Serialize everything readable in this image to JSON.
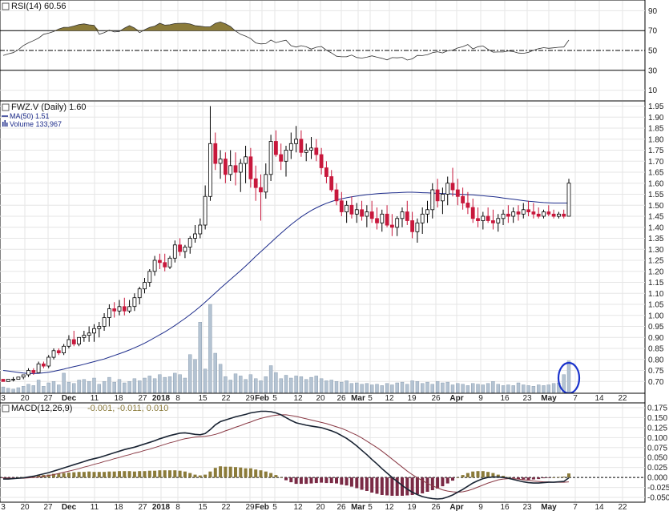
{
  "panels": {
    "rsi": {
      "title": "RSI(14) 60.56",
      "yticks": [
        10,
        30,
        50,
        70,
        90
      ],
      "ylim": [
        0,
        100
      ],
      "upper_line": 70,
      "lower_line": 30,
      "mid_line": 50,
      "fill_color": "#8b7b3a"
    },
    "price": {
      "title": "FWZ.V (Daily) 1.60",
      "ma_label": "MA(50) 1.51",
      "volume_label": "Volume 133,967",
      "ylim": [
        0.65,
        1.97
      ],
      "yticks": [
        "0.70",
        "0.75",
        "0.80",
        "0.85",
        "0.90",
        "0.95",
        "1.00",
        "1.05",
        "1.10",
        "1.15",
        "1.20",
        "1.25",
        "1.30",
        "1.35",
        "1.40",
        "1.45",
        "1.50",
        "1.55",
        "1.60",
        "1.65",
        "1.70",
        "1.75",
        "1.80",
        "1.85",
        "1.90",
        "1.95"
      ],
      "up_color": "#ffffff",
      "down_color": "#c8183c",
      "ma_color": "#1c2b8a",
      "volume_color": "#b4c3d2",
      "highlight_circle_color": "#1a33cc"
    },
    "macd": {
      "title": "MACD(12,26,9)",
      "values_label": "-0.001, -0.011, 0.010",
      "ylim": [
        -0.06,
        0.185
      ],
      "yticks": [
        "-0.050",
        "-0.025",
        "0.000",
        "0.025",
        "0.050",
        "0.075",
        "0.100",
        "0.125",
        "0.150",
        "0.175"
      ],
      "macd_color": "#1a2433",
      "signal_color": "#8a3a45",
      "hist_pos_color": "#8b7b3a",
      "hist_neg_color": "#7a2a45"
    }
  },
  "xaxis_labels": [
    "3",
    "20",
    "27",
    "Dec",
    "11",
    "18",
    "27",
    "2018",
    "8",
    "15",
    "22",
    "29",
    "Feb",
    "5",
    "12",
    "20",
    "26",
    "Mar",
    "5",
    "12",
    "19",
    "26",
    "Apr",
    "9",
    "16",
    "23",
    "May",
    "7",
    "14",
    "22"
  ],
  "chart_data": {
    "type": "candlestick",
    "n_bars": 113,
    "rsi": [
      44.9,
      46.6,
      47.8,
      50.7,
      55.0,
      57.7,
      59.9,
      62.4,
      66.3,
      67.4,
      69.0,
      71.6,
      73.3,
      73.4,
      74.6,
      76.1,
      76.8,
      75.8,
      75.3,
      66.3,
      68.0,
      70.5,
      68.6,
      69.1,
      72.5,
      75.0,
      72.7,
      67.9,
      70.9,
      73.3,
      74.5,
      77.4,
      75.5,
      75.9,
      77.1,
      77.3,
      77.4,
      76.7,
      75.0,
      74.4,
      73.8,
      73.8,
      77.3,
      78.7,
      76.8,
      74.1,
      69.5,
      66.3,
      64.4,
      61.9,
      57.6,
      56.6,
      56.9,
      60.5,
      57.9,
      59.3,
      60.3,
      54.8,
      53.4,
      54.8,
      53.7,
      51.4,
      53.2,
      54.0,
      50.3,
      47.5,
      44.2,
      43.6,
      43.7,
      45.3,
      42.9,
      42.3,
      43.2,
      44.6,
      43.2,
      42.1,
      40.5,
      42.8,
      42.6,
      43.1,
      40.3,
      41.5,
      45.0,
      44.8,
      45.7,
      47.8,
      48.7,
      47.5,
      49.7,
      50.3,
      52.5,
      53.9,
      56.0,
      51.5,
      53.8,
      54.5,
      51.1,
      48.3,
      48.5,
      48.5,
      49.5,
      48.9,
      47.4,
      47.1,
      48.1,
      50.2,
      51.8,
      52.8,
      52.2,
      52.7,
      53.2,
      53.5,
      60.5
    ],
    "ohlc": [
      [
        0.71,
        0.71,
        0.7,
        0.7
      ],
      [
        0.7,
        0.71,
        0.7,
        0.71
      ],
      [
        0.71,
        0.72,
        0.7,
        0.71
      ],
      [
        0.71,
        0.72,
        0.71,
        0.72
      ],
      [
        0.72,
        0.73,
        0.71,
        0.73
      ],
      [
        0.73,
        0.76,
        0.72,
        0.75
      ],
      [
        0.75,
        0.76,
        0.73,
        0.74
      ],
      [
        0.74,
        0.79,
        0.74,
        0.78
      ],
      [
        0.78,
        0.79,
        0.76,
        0.77
      ],
      [
        0.77,
        0.82,
        0.76,
        0.81
      ],
      [
        0.81,
        0.85,
        0.8,
        0.84
      ],
      [
        0.84,
        0.85,
        0.82,
        0.83
      ],
      [
        0.83,
        0.87,
        0.82,
        0.86
      ],
      [
        0.86,
        0.91,
        0.85,
        0.89
      ],
      [
        0.89,
        0.93,
        0.86,
        0.87
      ],
      [
        0.87,
        0.9,
        0.86,
        0.9
      ],
      [
        0.9,
        0.93,
        0.88,
        0.91
      ],
      [
        0.91,
        0.95,
        0.88,
        0.92
      ],
      [
        0.92,
        0.96,
        0.88,
        0.94
      ],
      [
        0.94,
        0.97,
        0.9,
        0.95
      ],
      [
        0.95,
        1.01,
        0.93,
        0.99
      ],
      [
        0.99,
        1.05,
        0.95,
        1.03
      ],
      [
        1.03,
        1.06,
        0.99,
        1.02
      ],
      [
        1.02,
        1.07,
        1.0,
        1.04
      ],
      [
        1.04,
        1.08,
        1.0,
        1.02
      ],
      [
        1.02,
        1.07,
        1.01,
        1.04
      ],
      [
        1.04,
        1.1,
        1.02,
        1.08
      ],
      [
        1.08,
        1.13,
        1.05,
        1.12
      ],
      [
        1.12,
        1.17,
        1.1,
        1.15
      ],
      [
        1.15,
        1.21,
        1.13,
        1.2
      ],
      [
        1.2,
        1.27,
        1.18,
        1.25
      ],
      [
        1.25,
        1.28,
        1.21,
        1.24
      ],
      [
        1.24,
        1.28,
        1.2,
        1.22
      ],
      [
        1.22,
        1.27,
        1.21,
        1.26
      ],
      [
        1.26,
        1.34,
        1.24,
        1.32
      ],
      [
        1.32,
        1.35,
        1.27,
        1.29
      ],
      [
        1.29,
        1.32,
        1.26,
        1.31
      ],
      [
        1.31,
        1.36,
        1.28,
        1.35
      ],
      [
        1.35,
        1.41,
        1.33,
        1.37
      ],
      [
        1.37,
        1.44,
        1.35,
        1.41
      ],
      [
        1.41,
        1.59,
        1.39,
        1.54
      ],
      [
        1.54,
        1.95,
        1.52,
        1.78
      ],
      [
        1.78,
        1.83,
        1.66,
        1.69
      ],
      [
        1.69,
        1.75,
        1.62,
        1.71
      ],
      [
        1.71,
        1.74,
        1.6,
        1.64
      ],
      [
        1.64,
        1.75,
        1.61,
        1.68
      ],
      [
        1.68,
        1.74,
        1.59,
        1.65
      ],
      [
        1.65,
        1.71,
        1.56,
        1.69
      ],
      [
        1.69,
        1.77,
        1.6,
        1.72
      ],
      [
        1.72,
        1.76,
        1.58,
        1.62
      ],
      [
        1.62,
        1.68,
        1.52,
        1.58
      ],
      [
        1.58,
        1.64,
        1.43,
        1.56
      ],
      [
        1.56,
        1.69,
        1.53,
        1.64
      ],
      [
        1.64,
        1.82,
        1.61,
        1.79
      ],
      [
        1.79,
        1.84,
        1.72,
        1.73
      ],
      [
        1.73,
        1.78,
        1.66,
        1.7
      ],
      [
        1.7,
        1.77,
        1.63,
        1.75
      ],
      [
        1.75,
        1.83,
        1.71,
        1.78
      ],
      [
        1.78,
        1.86,
        1.74,
        1.8
      ],
      [
        1.8,
        1.84,
        1.72,
        1.74
      ],
      [
        1.74,
        1.78,
        1.7,
        1.75
      ],
      [
        1.75,
        1.81,
        1.71,
        1.76
      ],
      [
        1.76,
        1.8,
        1.7,
        1.73
      ],
      [
        1.73,
        1.76,
        1.64,
        1.67
      ],
      [
        1.67,
        1.7,
        1.6,
        1.63
      ],
      [
        1.63,
        1.66,
        1.56,
        1.57
      ],
      [
        1.57,
        1.6,
        1.5,
        1.52
      ],
      [
        1.52,
        1.56,
        1.45,
        1.47
      ],
      [
        1.47,
        1.52,
        1.42,
        1.5
      ],
      [
        1.5,
        1.54,
        1.44,
        1.46
      ],
      [
        1.46,
        1.51,
        1.42,
        1.48
      ],
      [
        1.48,
        1.52,
        1.43,
        1.45
      ],
      [
        1.45,
        1.5,
        1.4,
        1.47
      ],
      [
        1.47,
        1.52,
        1.42,
        1.44
      ],
      [
        1.44,
        1.49,
        1.39,
        1.42
      ],
      [
        1.42,
        1.48,
        1.38,
        1.46
      ],
      [
        1.46,
        1.5,
        1.4,
        1.41
      ],
      [
        1.41,
        1.46,
        1.36,
        1.4
      ],
      [
        1.4,
        1.45,
        1.36,
        1.44
      ],
      [
        1.44,
        1.49,
        1.4,
        1.47
      ],
      [
        1.47,
        1.52,
        1.41,
        1.43
      ],
      [
        1.43,
        1.47,
        1.35,
        1.38
      ],
      [
        1.38,
        1.44,
        1.33,
        1.42
      ],
      [
        1.42,
        1.49,
        1.37,
        1.46
      ],
      [
        1.46,
        1.52,
        1.42,
        1.48
      ],
      [
        1.48,
        1.6,
        1.44,
        1.57
      ],
      [
        1.57,
        1.62,
        1.49,
        1.52
      ],
      [
        1.52,
        1.58,
        1.46,
        1.55
      ],
      [
        1.55,
        1.63,
        1.5,
        1.6
      ],
      [
        1.6,
        1.67,
        1.54,
        1.57
      ],
      [
        1.57,
        1.62,
        1.5,
        1.54
      ],
      [
        1.54,
        1.58,
        1.48,
        1.51
      ],
      [
        1.51,
        1.56,
        1.46,
        1.49
      ],
      [
        1.49,
        1.53,
        1.42,
        1.44
      ],
      [
        1.44,
        1.49,
        1.4,
        1.43
      ],
      [
        1.43,
        1.47,
        1.39,
        1.45
      ],
      [
        1.45,
        1.49,
        1.42,
        1.43
      ],
      [
        1.43,
        1.48,
        1.39,
        1.42
      ],
      [
        1.42,
        1.46,
        1.38,
        1.44
      ],
      [
        1.44,
        1.48,
        1.41,
        1.46
      ],
      [
        1.46,
        1.5,
        1.42,
        1.45
      ],
      [
        1.45,
        1.49,
        1.42,
        1.47
      ],
      [
        1.47,
        1.5,
        1.43,
        1.46
      ],
      [
        1.46,
        1.51,
        1.44,
        1.48
      ],
      [
        1.48,
        1.52,
        1.45,
        1.47
      ],
      [
        1.47,
        1.51,
        1.44,
        1.46
      ],
      [
        1.46,
        1.49,
        1.44,
        1.45
      ],
      [
        1.45,
        1.48,
        1.44,
        1.47
      ],
      [
        1.47,
        1.5,
        1.45,
        1.46
      ],
      [
        1.46,
        1.48,
        1.44,
        1.45
      ],
      [
        1.45,
        1.47,
        1.44,
        1.46
      ],
      [
        1.46,
        1.48,
        1.44,
        1.45
      ],
      [
        1.45,
        1.62,
        1.45,
        1.6
      ]
    ],
    "ma50": [
      0.75,
      0.747,
      0.744,
      0.741,
      0.738,
      0.736,
      0.736,
      0.737,
      0.739,
      0.742,
      0.746,
      0.751,
      0.756,
      0.762,
      0.767,
      0.772,
      0.778,
      0.784,
      0.79,
      0.796,
      0.802,
      0.81,
      0.818,
      0.826,
      0.834,
      0.843,
      0.853,
      0.863,
      0.874,
      0.886,
      0.899,
      0.912,
      0.925,
      0.939,
      0.954,
      0.97,
      0.986,
      1.003,
      1.021,
      1.04,
      1.06,
      1.081,
      1.102,
      1.123,
      1.143,
      1.163,
      1.183,
      1.203,
      1.224,
      1.246,
      1.268,
      1.289,
      1.31,
      1.331,
      1.352,
      1.373,
      1.393,
      1.412,
      1.43,
      1.447,
      1.462,
      1.476,
      1.488,
      1.499,
      1.509,
      1.517,
      1.524,
      1.529,
      1.534,
      1.538,
      1.542,
      1.545,
      1.548,
      1.55,
      1.552,
      1.554,
      1.555,
      1.556,
      1.557,
      1.558,
      1.559,
      1.559,
      1.558,
      1.557,
      1.556,
      1.555,
      1.554,
      1.553,
      1.552,
      1.551,
      1.55,
      1.549,
      1.548,
      1.547,
      1.545,
      1.543,
      1.541,
      1.539,
      1.536,
      1.533,
      1.53,
      1.527,
      1.524,
      1.521,
      1.518,
      1.516,
      1.514,
      1.512,
      1.511,
      1.51,
      1.51,
      1.51,
      1.51
    ],
    "volume": [
      0.8,
      0.6,
      0.5,
      0.7,
      0.9,
      1.2,
      1.0,
      1.8,
      0.9,
      1.4,
      1.6,
      1.1,
      2.8,
      1.5,
      1.3,
      1.8,
      1.9,
      1.6,
      2.1,
      1.2,
      1.6,
      2.2,
      1.5,
      1.9,
      1.4,
      1.6,
      2.0,
      1.7,
      2.1,
      2.4,
      2.0,
      2.6,
      2.2,
      2.3,
      2.8,
      2.6,
      2.1,
      5.5,
      4.8,
      10.2,
      3.4,
      12.8,
      5.7,
      4.1,
      2.3,
      1.8,
      2.7,
      2.4,
      1.9,
      2.6,
      2.0,
      1.7,
      2.3,
      3.9,
      2.9,
      2.0,
      2.5,
      2.1,
      2.4,
      2.3,
      1.9,
      2.2,
      2.4,
      2.0,
      1.7,
      1.8,
      1.6,
      1.5,
      1.7,
      1.3,
      1.4,
      1.2,
      1.3,
      1.1,
      1.2,
      1.0,
      1.3,
      1.1,
      1.4,
      1.5,
      1.2,
      1.7,
      1.6,
      1.3,
      1.5,
      1.2,
      1.6,
      1.4,
      1.5,
      1.1,
      1.3,
      1.2,
      1.0,
      1.3,
      1.2,
      1.1,
      1.3,
      1.6,
      1.2,
      1.0,
      1.1,
      1.0,
      1.4,
      1.1,
      1.0,
      0.9,
      1.1,
      1.0,
      1.1,
      1.3,
      1.4,
      2.6,
      4.6
    ],
    "macd_line": [
      -0.004,
      -0.004,
      -0.003,
      -0.002,
      -0.001,
      0.001,
      0.003,
      0.006,
      0.009,
      0.012,
      0.016,
      0.02,
      0.024,
      0.028,
      0.032,
      0.036,
      0.04,
      0.044,
      0.047,
      0.05,
      0.054,
      0.058,
      0.062,
      0.066,
      0.07,
      0.073,
      0.076,
      0.08,
      0.084,
      0.088,
      0.092,
      0.097,
      0.101,
      0.105,
      0.108,
      0.111,
      0.112,
      0.11,
      0.108,
      0.107,
      0.11,
      0.12,
      0.132,
      0.14,
      0.144,
      0.148,
      0.152,
      0.155,
      0.158,
      0.162,
      0.164,
      0.166,
      0.166,
      0.165,
      0.162,
      0.157,
      0.15,
      0.143,
      0.137,
      0.134,
      0.131,
      0.129,
      0.127,
      0.125,
      0.121,
      0.117,
      0.112,
      0.105,
      0.098,
      0.089,
      0.079,
      0.068,
      0.057,
      0.045,
      0.034,
      0.022,
      0.011,
      0.0,
      -0.01,
      -0.02,
      -0.029,
      -0.037,
      -0.043,
      -0.048,
      -0.051,
      -0.053,
      -0.054,
      -0.053,
      -0.049,
      -0.044,
      -0.037,
      -0.03,
      -0.022,
      -0.014,
      -0.008,
      -0.003,
      0.0,
      0.001,
      0.001,
      0.0,
      -0.002,
      -0.005,
      -0.008,
      -0.011,
      -0.013,
      -0.014,
      -0.014,
      -0.013,
      -0.012,
      -0.012,
      -0.011,
      -0.01,
      -0.001
    ],
    "signal_line": [
      -0.002,
      -0.002,
      -0.002,
      -0.002,
      -0.002,
      -0.001,
      0.0,
      0.001,
      0.003,
      0.005,
      0.007,
      0.01,
      0.013,
      0.016,
      0.019,
      0.022,
      0.026,
      0.029,
      0.033,
      0.036,
      0.04,
      0.043,
      0.047,
      0.05,
      0.054,
      0.057,
      0.061,
      0.064,
      0.068,
      0.071,
      0.075,
      0.079,
      0.083,
      0.087,
      0.09,
      0.094,
      0.097,
      0.099,
      0.101,
      0.102,
      0.103,
      0.105,
      0.108,
      0.112,
      0.117,
      0.121,
      0.126,
      0.13,
      0.135,
      0.139,
      0.144,
      0.148,
      0.151,
      0.154,
      0.156,
      0.157,
      0.157,
      0.155,
      0.153,
      0.15,
      0.147,
      0.144,
      0.141,
      0.138,
      0.135,
      0.131,
      0.127,
      0.123,
      0.118,
      0.112,
      0.106,
      0.099,
      0.091,
      0.083,
      0.075,
      0.066,
      0.056,
      0.046,
      0.036,
      0.026,
      0.016,
      0.007,
      -0.001,
      -0.008,
      -0.015,
      -0.021,
      -0.026,
      -0.031,
      -0.034,
      -0.036,
      -0.037,
      -0.036,
      -0.033,
      -0.029,
      -0.024,
      -0.019,
      -0.014,
      -0.01,
      -0.006,
      -0.004,
      -0.003,
      -0.003,
      -0.004,
      -0.006,
      -0.007,
      -0.009,
      -0.01,
      -0.011,
      -0.011,
      -0.012,
      -0.012,
      -0.012,
      -0.011
    ]
  }
}
